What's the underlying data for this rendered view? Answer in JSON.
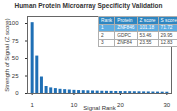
{
  "chart_data": {
    "type": "bar",
    "title": "Human Protein Microarray Specificity Validation",
    "x_label": "Signal Rank",
    "y_label": "Strength of Signal (Z score)",
    "x": [
      1,
      2,
      3,
      4,
      5,
      6,
      7,
      8,
      9,
      10,
      11,
      12,
      13,
      14,
      15,
      16,
      17,
      18,
      19,
      20,
      21,
      22,
      23,
      24,
      25,
      26,
      27,
      28,
      29,
      30
    ],
    "values": [
      101.18,
      53.46,
      23.55,
      10,
      8,
      7,
      6,
      5.5,
      5,
      4.5,
      4.2,
      4,
      3.8,
      3.6,
      3.4,
      3.2,
      3.1,
      3,
      2.9,
      2.8,
      2.7,
      2.6,
      2.5,
      2.4,
      2.3,
      2.2,
      2.1,
      2,
      1.9,
      1.8
    ],
    "color": "#1f6fb5",
    "xlim": [
      0,
      31
    ],
    "xticks": [
      1,
      10,
      20,
      30
    ],
    "ylim": [
      0,
      110
    ],
    "yticks": [
      0,
      25,
      50,
      75,
      100
    ],
    "grid": false,
    "table": {
      "columns": [
        "Rank",
        "Protein",
        "Z score",
        "S score"
      ],
      "rows": [
        [
          1,
          "ZNF846",
          101.18,
          71.72
        ],
        [
          2,
          "GDPC",
          53.46,
          29.95
        ],
        [
          3,
          "ZNF84",
          23.55,
          12.83
        ]
      ]
    }
  }
}
